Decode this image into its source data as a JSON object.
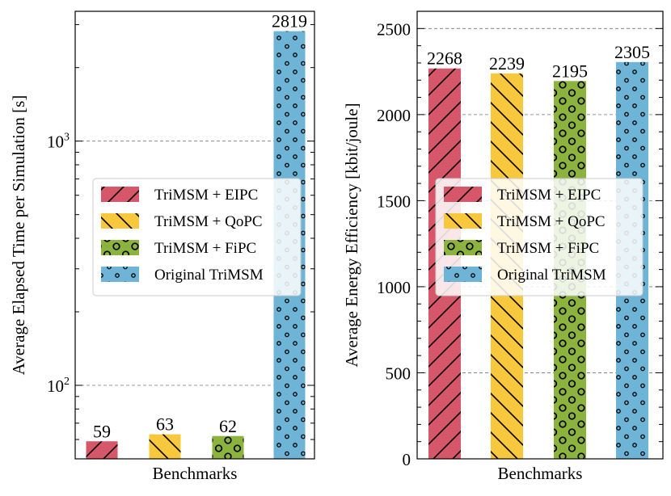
{
  "colors": {
    "eipc": "#d6576a",
    "qopc": "#f7c83c",
    "fipc": "#8db33f",
    "original": "#6db4d6"
  },
  "chart_data": [
    {
      "type": "bar",
      "scale": "log",
      "title": "",
      "xlabel": "Benchmarks",
      "ylabel": "Average Elapsed Time per Simulation [s]",
      "ylim": [
        50,
        3400
      ],
      "yticks": [
        {
          "value": 100,
          "base": "10",
          "exp": "2"
        },
        {
          "value": 1000,
          "base": "10",
          "exp": "3"
        }
      ],
      "grid": true,
      "legend_position": "center",
      "series": [
        {
          "name": "TriMSM + EIPC",
          "value": 59,
          "label": "59",
          "key": "eipc",
          "pattern": "forward-slash"
        },
        {
          "name": "TriMSM + QoPC",
          "value": 63,
          "label": "63",
          "key": "qopc",
          "pattern": "back-slash"
        },
        {
          "name": "TriMSM + FiPC",
          "value": 62,
          "label": "62",
          "key": "fipc",
          "pattern": "big-circles"
        },
        {
          "name": "Original TriMSM",
          "value": 2819,
          "label": "2819",
          "key": "original",
          "pattern": "small-circles"
        }
      ]
    },
    {
      "type": "bar",
      "scale": "linear",
      "title": "",
      "xlabel": "Benchmarks",
      "ylabel": "Average Energy Efficiency [kbit/joule]",
      "ylim": [
        0,
        2600
      ],
      "yticks": [
        {
          "value": 0,
          "label": "0"
        },
        {
          "value": 500,
          "label": "500"
        },
        {
          "value": 1000,
          "label": "1000"
        },
        {
          "value": 1500,
          "label": "1500"
        },
        {
          "value": 2000,
          "label": "2000"
        },
        {
          "value": 2500,
          "label": "2500"
        }
      ],
      "grid": true,
      "legend_position": "center",
      "series": [
        {
          "name": "TriMSM + EIPC",
          "value": 2268,
          "label": "2268",
          "key": "eipc",
          "pattern": "forward-slash"
        },
        {
          "name": "TriMSM + QoPC",
          "value": 2239,
          "label": "2239",
          "key": "qopc",
          "pattern": "back-slash"
        },
        {
          "name": "TriMSM + FiPC",
          "value": 2195,
          "label": "2195",
          "key": "fipc",
          "pattern": "big-circles"
        },
        {
          "name": "Original TriMSM",
          "value": 2305,
          "label": "2305",
          "key": "original",
          "pattern": "small-circles"
        }
      ]
    }
  ]
}
